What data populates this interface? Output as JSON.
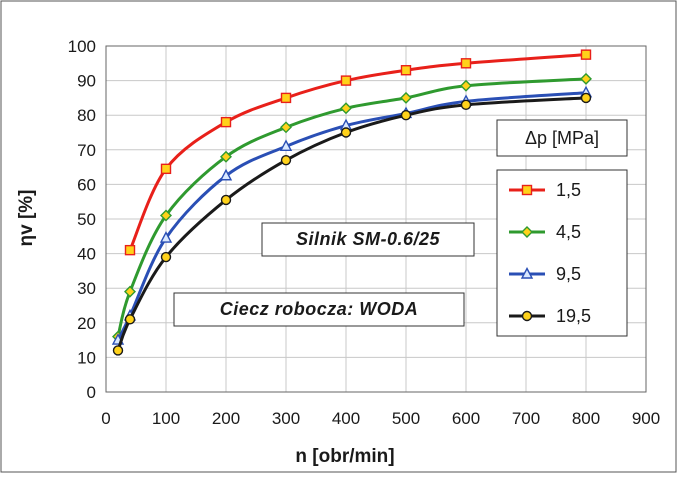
{
  "chart_data": {
    "type": "line",
    "title": "",
    "xlabel": "n   [obr/min]",
    "ylabel": "ηv   [%]",
    "xlim": [
      0,
      900
    ],
    "ylim": [
      0,
      100
    ],
    "x_ticks": [
      0,
      100,
      200,
      300,
      400,
      500,
      600,
      700,
      800,
      900
    ],
    "y_ticks": [
      0,
      10,
      20,
      30,
      40,
      50,
      60,
      70,
      80,
      90,
      100
    ],
    "grid": true,
    "legend_title": "Δp   [MPa]",
    "legend_position": "right",
    "annotations": [
      "Silnik SM-0.6/25",
      "Ciecz robocza: WODA"
    ],
    "series": [
      {
        "name": "1,5",
        "color": "#e8201a",
        "marker": "square",
        "marker_fill": "#ffd21a",
        "x": [
          40,
          100,
          200,
          300,
          400,
          500,
          600,
          800
        ],
        "y": [
          41,
          64.5,
          78,
          85,
          90,
          93,
          95,
          97.5
        ]
      },
      {
        "name": "4,5",
        "color": "#2f9a2f",
        "marker": "diamond",
        "marker_fill": "#ffd21a",
        "x": [
          20,
          40,
          100,
          200,
          300,
          400,
          500,
          600,
          800
        ],
        "y": [
          16,
          29,
          51,
          68,
          76.5,
          82,
          85,
          88.5,
          90.5
        ]
      },
      {
        "name": "9,5",
        "color": "#2a4fb5",
        "marker": "triangle",
        "marker_fill": "#d9e8ff",
        "x": [
          20,
          40,
          100,
          200,
          300,
          400,
          500,
          600,
          800
        ],
        "y": [
          15,
          22,
          44.5,
          62.5,
          71,
          77,
          80.5,
          84,
          86.5
        ]
      },
      {
        "name": "19,5",
        "color": "#1a1a1a",
        "marker": "circle",
        "marker_fill": "#ffd21a",
        "x": [
          20,
          40,
          100,
          200,
          300,
          400,
          500,
          600,
          800
        ],
        "y": [
          12,
          21,
          39,
          55.5,
          67,
          75,
          80,
          83,
          85
        ]
      }
    ]
  }
}
